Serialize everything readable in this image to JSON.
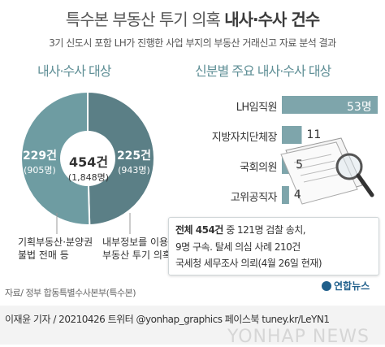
{
  "title": {
    "part1": "특수본 부동산 투기 의혹",
    "part2": "내사·수사 건수"
  },
  "subtitle": "3기 신도시 포함 LH가 진행한 사업 부지의 부동산 거래신고 자료 분석 결과",
  "chart_data": [
    {
      "type": "pie",
      "title": "내사·수사 대상",
      "center_label": "454건",
      "center_sublabel": "(1,848명)",
      "slices": [
        {
          "label": "기획부동산·분양권 불법 전매 등",
          "cases": "229건",
          "people": "(905명)",
          "value": 229,
          "color": "#6e9ca2"
        },
        {
          "label": "내부정보를 이용한 부동산 투기 의혹 관련",
          "cases": "225건",
          "people": "(943명)",
          "value": 225,
          "color": "#5b7f86"
        }
      ]
    },
    {
      "type": "bar",
      "title": "신분별 주요 내사·수사 대상",
      "categories": [
        "LH임직원",
        "지방자치단체장",
        "국회의원",
        "고위공직자"
      ],
      "values": [
        53,
        11,
        5,
        4
      ],
      "value_labels": [
        "53명",
        "11",
        "5",
        "4"
      ],
      "color": "#7ea5ab"
    }
  ],
  "pie_labels": {
    "left_line1": "기획부동산·분양권",
    "left_line2": "불법 전매 등",
    "right_line1": "내부정보를 이용한",
    "right_line2": "부동산 투기 의혹 관련"
  },
  "note": {
    "line1_bold": "전체 454건",
    "line1_rest": "중 121명 검찰 송치,",
    "line2": "9명 구속. 탈세 의심 사례 210건",
    "line3": "국세청 세무조사 의뢰(4월 26일 현재)"
  },
  "source": "자료/ 정부 합동특별수사본부(특수본)",
  "logo": "연합뉴스",
  "credit": "이재윤 기자 / 20210426   트위터 @yonhap_graphics  페이스북 tuney.kr/LeYN1",
  "watermark": "YONHAP NEWS",
  "colors": {
    "accent": "#5f8f96",
    "bar": "#7ea5ab",
    "slice_light": "#6e9ca2",
    "slice_dark": "#5b7f86"
  }
}
